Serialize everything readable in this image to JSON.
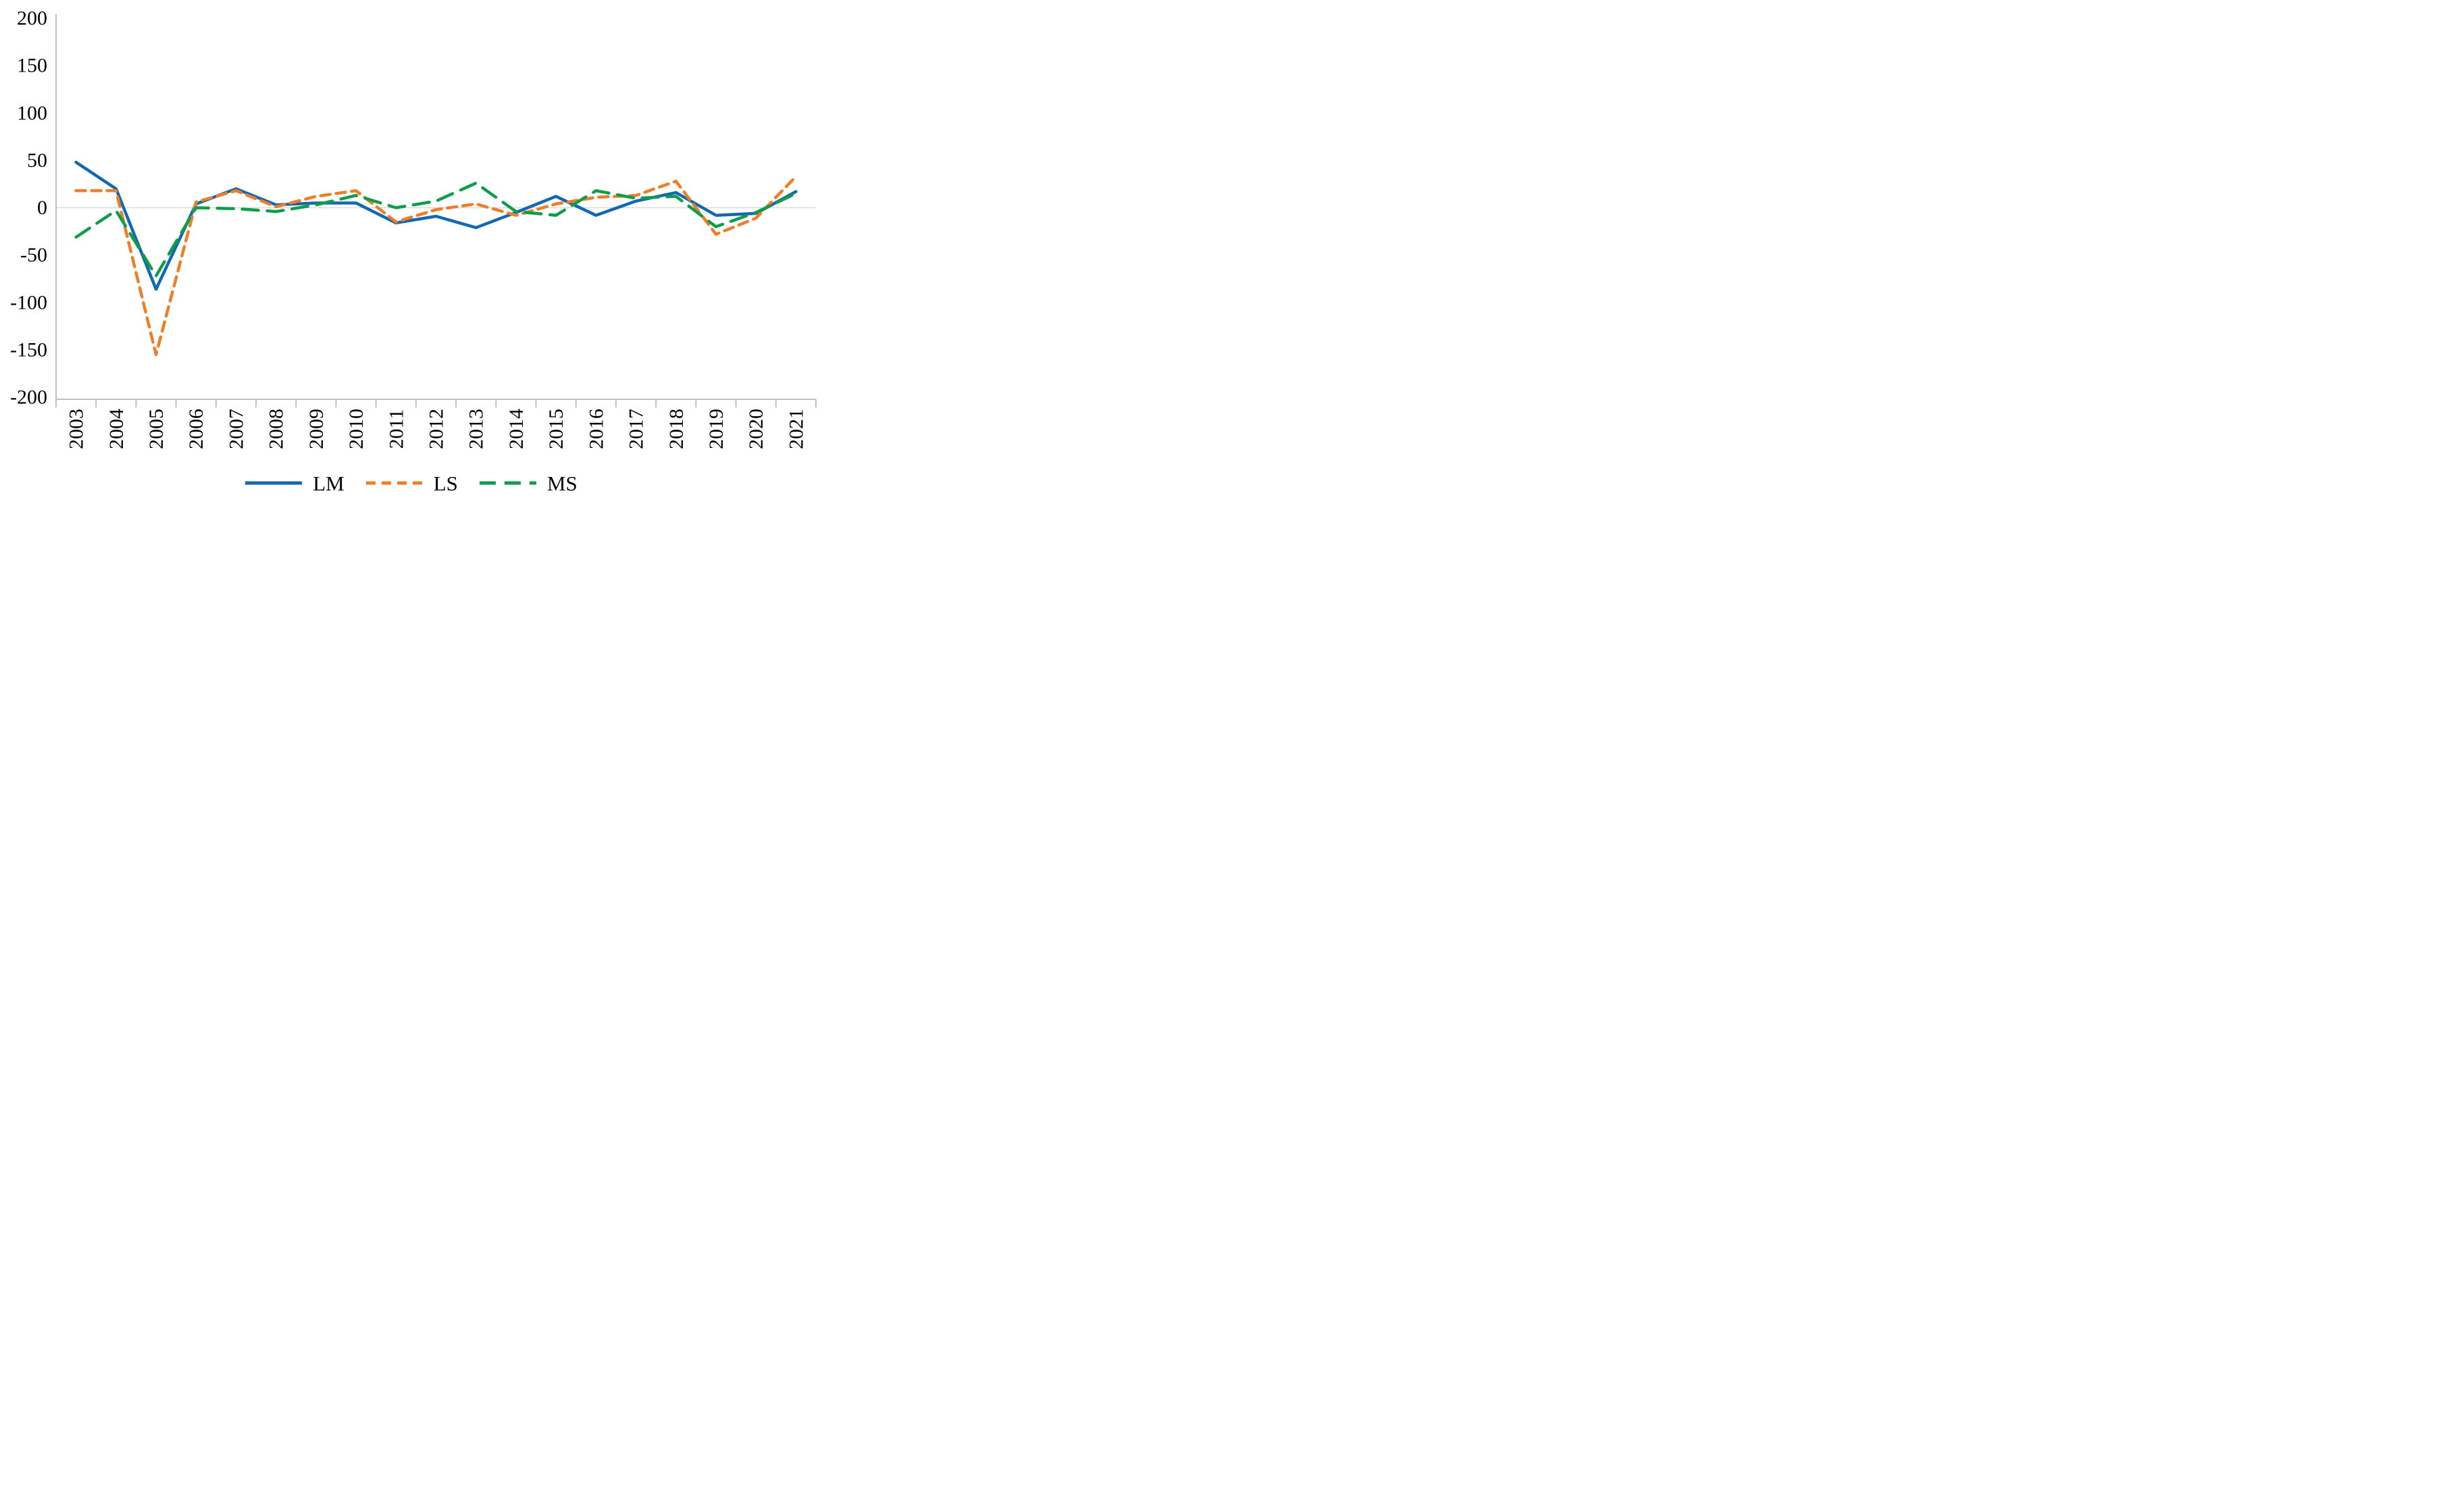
{
  "chart_data": {
    "type": "line",
    "title": "",
    "xlabel": "",
    "ylabel": "",
    "x": [
      2003,
      2004,
      2005,
      2006,
      2007,
      2008,
      2009,
      2010,
      2011,
      2012,
      2013,
      2014,
      2015,
      2016,
      2017,
      2018,
      2019,
      2020,
      2021
    ],
    "series": [
      {
        "name": "LM",
        "color": "#1268B1",
        "dash": "solid",
        "values": [
          48,
          20,
          -86,
          4,
          20,
          3,
          5,
          5,
          -16,
          -9,
          -21,
          -5,
          12,
          -8,
          7,
          16,
          -8,
          -6,
          17
        ]
      },
      {
        "name": "LS",
        "color": "#F07D27",
        "dash": "short-dash",
        "values": [
          18,
          18,
          -155,
          6,
          18,
          1,
          12,
          18,
          -15,
          -2,
          4,
          -8,
          4,
          11,
          13,
          28,
          -28,
          -11,
          33
        ]
      },
      {
        "name": "MS",
        "color": "#0E9D49",
        "dash": "long-dash",
        "values": [
          -31,
          -3,
          -72,
          0,
          -1,
          -4,
          3,
          13,
          0,
          7,
          26,
          -4,
          -8,
          18,
          10,
          12,
          -20,
          -5,
          15
        ]
      }
    ],
    "ylim": [
      -200,
      200
    ],
    "yticks": [
      200,
      150,
      100,
      50,
      0,
      -50,
      -100,
      -150,
      -200
    ],
    "ytick_step": 50,
    "grid": "zero-line-only",
    "legend_position": "bottom-center",
    "axis_color": "#BFBFBF",
    "zero_line_color": "#D9D9D9"
  }
}
